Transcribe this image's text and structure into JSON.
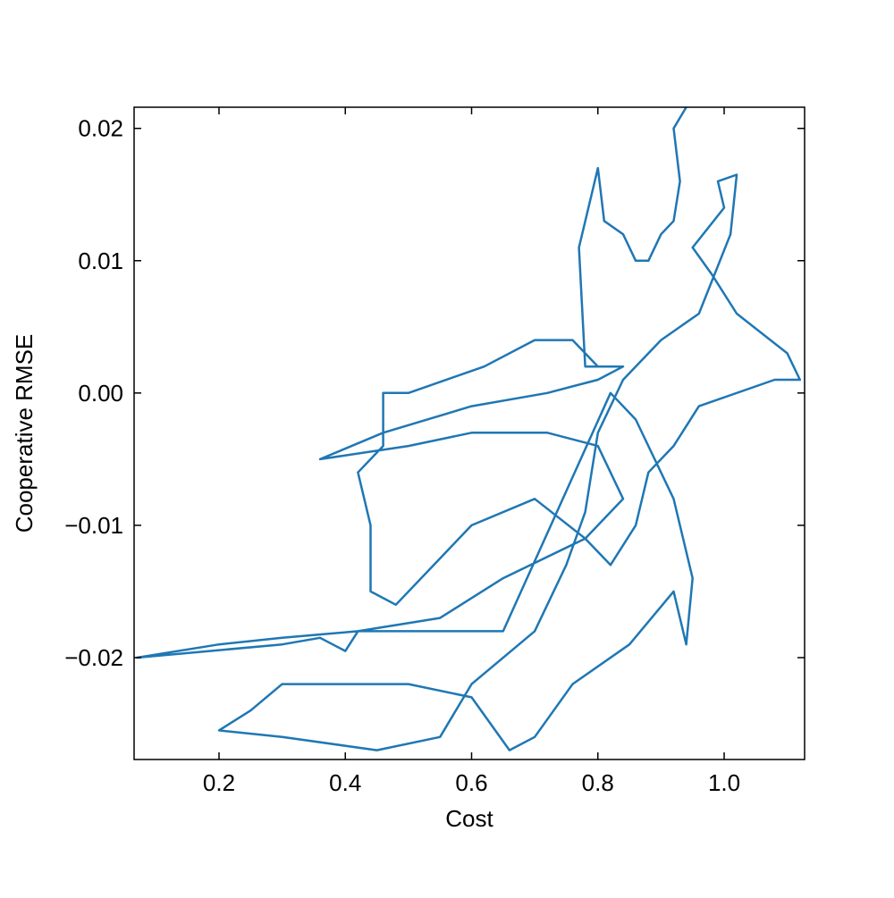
{
  "chart_data": {
    "type": "line",
    "x_label": "Cost",
    "y_label": "Cooperative RMSE",
    "x": [
      0.8,
      0.76,
      0.7,
      0.62,
      0.5,
      0.46,
      0.46,
      0.42,
      0.44,
      0.44,
      0.48,
      0.56,
      0.6,
      0.7,
      0.78,
      0.82,
      0.86,
      0.88,
      0.92,
      0.96,
      1.08,
      1.12,
      1.1,
      1.02,
      0.98,
      0.95,
      1.0,
      0.99,
      1.02,
      1.01,
      0.96,
      0.9,
      0.84,
      0.8,
      0.78,
      0.75,
      0.7,
      0.6,
      0.55,
      0.45,
      0.3,
      0.2,
      0.25,
      0.3,
      0.5,
      0.6,
      0.66,
      0.7,
      0.76,
      0.85,
      0.92,
      0.94,
      0.95,
      0.92,
      0.86,
      0.82,
      0.65,
      0.55,
      0.42,
      0.3,
      0.2,
      0.07,
      0.3,
      0.36,
      0.4,
      0.42,
      0.55,
      0.65,
      0.78,
      0.84,
      0.8,
      0.72,
      0.6,
      0.5,
      0.36,
      0.46,
      0.6,
      0.72,
      0.8,
      0.84,
      0.78,
      0.77,
      0.8,
      0.81,
      0.84,
      0.86,
      0.88,
      0.9,
      0.92,
      0.93,
      0.92,
      0.94
    ],
    "series": [
      {
        "color": "#1f77b4",
        "values": [
          0.002,
          0.004,
          0.004,
          0.002,
          0.0,
          0.0,
          -0.004,
          -0.006,
          -0.01,
          -0.015,
          -0.016,
          -0.012,
          -0.01,
          -0.008,
          -0.011,
          -0.013,
          -0.01,
          -0.006,
          -0.004,
          -0.001,
          0.001,
          0.001,
          0.003,
          0.006,
          0.009,
          0.011,
          0.014,
          0.016,
          0.0165,
          0.012,
          0.006,
          0.004,
          0.001,
          -0.003,
          -0.009,
          -0.013,
          -0.018,
          -0.022,
          -0.026,
          -0.027,
          -0.026,
          -0.0255,
          -0.024,
          -0.022,
          -0.022,
          -0.023,
          -0.027,
          -0.026,
          -0.022,
          -0.019,
          -0.015,
          -0.019,
          -0.014,
          -0.008,
          -0.002,
          0.0,
          -0.018,
          -0.018,
          -0.018,
          -0.0185,
          -0.019,
          -0.02,
          -0.019,
          -0.0185,
          -0.0195,
          -0.018,
          -0.017,
          -0.014,
          -0.011,
          -0.008,
          -0.004,
          -0.003,
          -0.003,
          -0.004,
          -0.005,
          -0.003,
          -0.001,
          0.0,
          0.001,
          0.002,
          0.002,
          0.011,
          0.017,
          0.013,
          0.012,
          0.01,
          0.01,
          0.012,
          0.013,
          0.016,
          0.02,
          0.0216
        ]
      }
    ],
    "xlim": [
      0.0655,
      1.1274
    ],
    "ylim": [
      -0.0277,
      0.0216
    ],
    "xticks": [
      0.2,
      0.4,
      0.6,
      0.8,
      {
        "value": 1.0,
        "label": "1.0"
      }
    ],
    "yticks": [
      {
        "value": -0.02,
        "label": "−0.02"
      },
      {
        "value": -0.01,
        "label": "−0.01"
      },
      {
        "value": 0,
        "label": "0.00"
      },
      0.01,
      0.02
    ]
  }
}
